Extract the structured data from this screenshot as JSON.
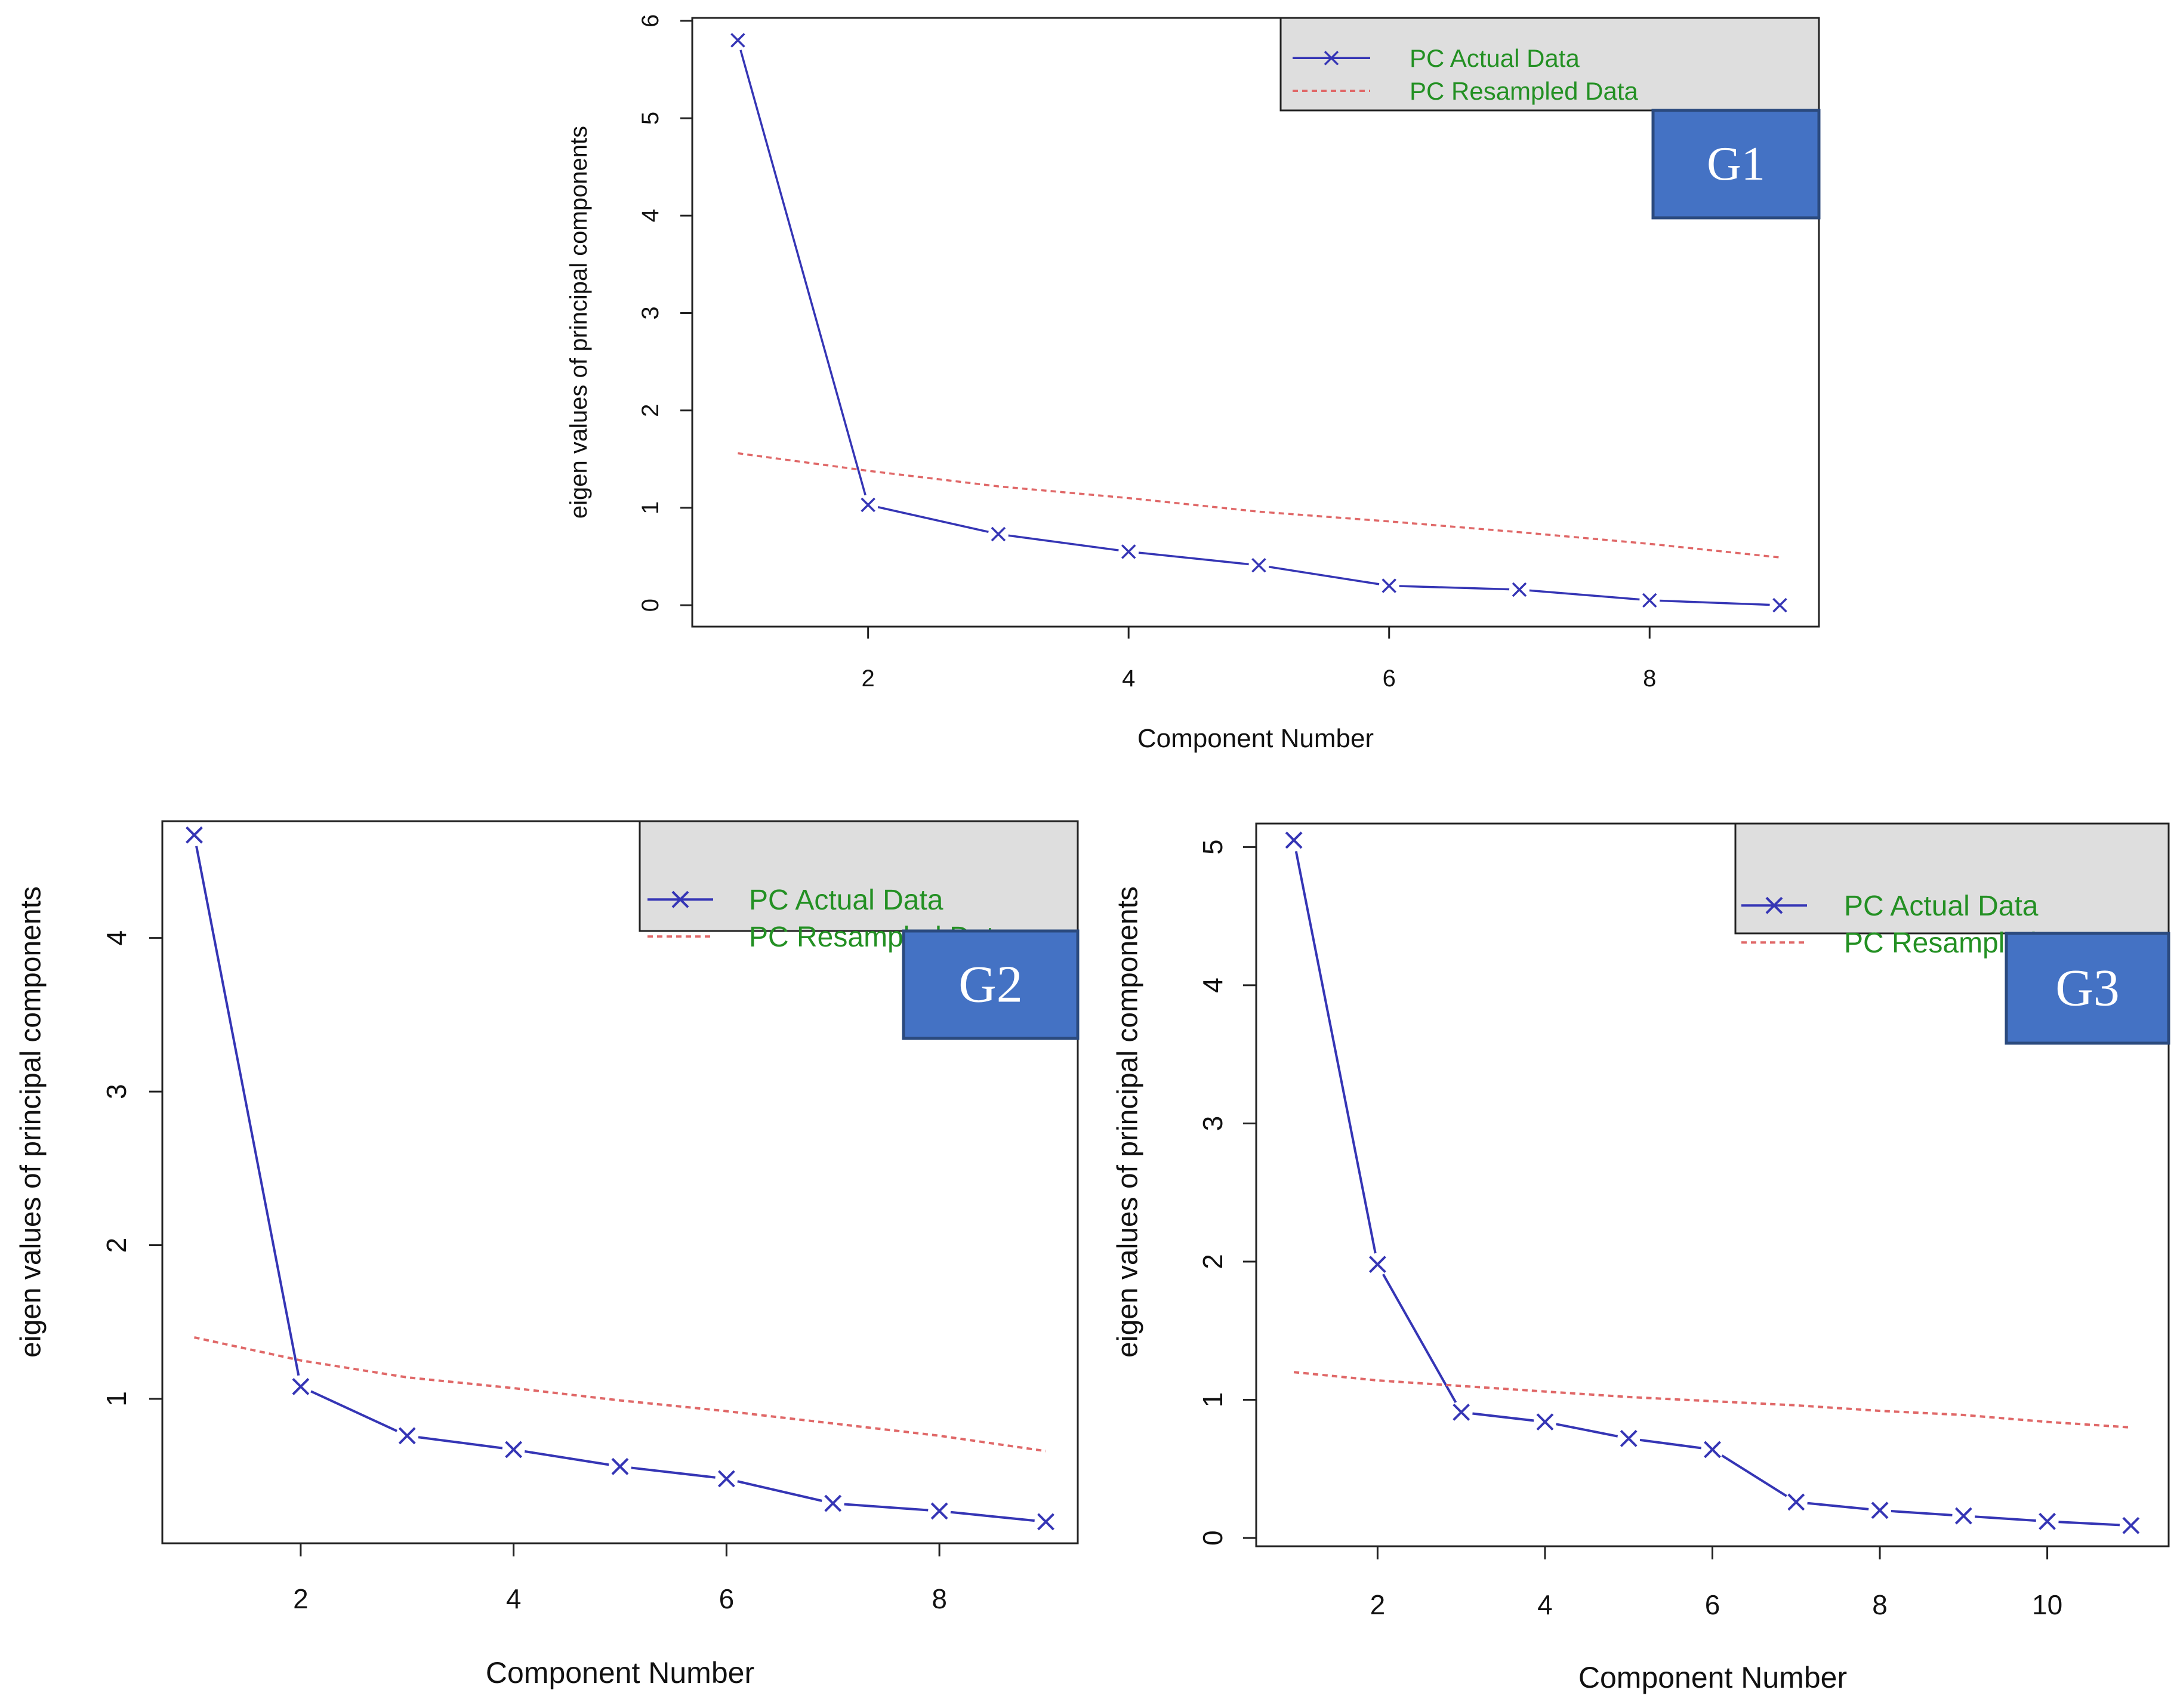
{
  "colors": {
    "actual": "#3535b5",
    "resampled": "#e06868",
    "legend_text": "#239023",
    "legend_bg": "#dedede",
    "badge_fill": "#4472c4",
    "badge_border": "#2b4a7e",
    "axis": "#222222"
  },
  "icons": {
    "actual_marker": "cross-x-marker",
    "resampled_marker": "dashed-line"
  },
  "chart_data": [
    {
      "id": "g1",
      "type": "line",
      "badge": "G1",
      "xlabel": "Component Number",
      "ylabel": "eigen values of principal components",
      "xlim": [
        0.65,
        9.3
      ],
      "ylim": [
        -0.22,
        6.03
      ],
      "xticks": [
        2,
        4,
        6,
        8
      ],
      "yticks": [
        0,
        1,
        2,
        3,
        4,
        5,
        6
      ],
      "legend": {
        "position": "top-right",
        "entries": [
          "PC  Actual Data",
          "PC  Resampled Data"
        ]
      },
      "series": [
        {
          "name": "PC  Actual Data",
          "style": "solid-x",
          "x": [
            1,
            2,
            3,
            4,
            5,
            6,
            7,
            8,
            9
          ],
          "values": [
            5.8,
            1.03,
            0.73,
            0.55,
            0.41,
            0.2,
            0.16,
            0.05,
            0.0
          ]
        },
        {
          "name": "PC  Resampled Data",
          "style": "dashed",
          "x": [
            1,
            2,
            3,
            4,
            5,
            6,
            7,
            8,
            9
          ],
          "values": [
            1.56,
            1.38,
            1.22,
            1.1,
            0.96,
            0.86,
            0.75,
            0.63,
            0.49
          ]
        }
      ]
    },
    {
      "id": "g2",
      "type": "line",
      "badge": "G2",
      "xlabel": "Component Number",
      "ylabel": "eigen values of principal components",
      "xlim": [
        0.7,
        9.3
      ],
      "ylim": [
        0.06,
        4.76
      ],
      "xticks": [
        2,
        4,
        6,
        8
      ],
      "yticks": [
        1,
        2,
        3,
        4
      ],
      "legend": {
        "position": "top-right",
        "entries": [
          "PC  Actual Data",
          "PC  Resampled Data"
        ]
      },
      "series": [
        {
          "name": "PC  Actual Data",
          "style": "solid-x",
          "x": [
            1,
            2,
            3,
            4,
            5,
            6,
            7,
            8,
            9
          ],
          "values": [
            4.67,
            1.08,
            0.76,
            0.67,
            0.56,
            0.48,
            0.32,
            0.27,
            0.2
          ]
        },
        {
          "name": "PC  Resampled Data",
          "style": "dashed",
          "x": [
            1,
            2,
            3,
            4,
            5,
            6,
            7,
            8,
            9
          ],
          "values": [
            1.4,
            1.25,
            1.14,
            1.07,
            0.99,
            0.92,
            0.84,
            0.76,
            0.66
          ]
        }
      ]
    },
    {
      "id": "g3",
      "type": "line",
      "badge": "G3",
      "xlabel": "Component Number",
      "ylabel": "eigen values of principal components",
      "xlim": [
        0.55,
        11.45
      ],
      "ylim": [
        -0.06,
        5.17
      ],
      "xticks": [
        2,
        4,
        6,
        8,
        10
      ],
      "yticks": [
        0,
        1,
        2,
        3,
        4,
        5
      ],
      "legend": {
        "position": "top-right",
        "entries": [
          "PC  Actual Data",
          "PC  Resampled Data"
        ]
      },
      "series": [
        {
          "name": "PC  Actual Data",
          "style": "solid-x",
          "x": [
            1,
            2,
            3,
            4,
            5,
            6,
            7,
            8,
            9,
            10,
            11
          ],
          "values": [
            5.05,
            1.98,
            0.91,
            0.84,
            0.72,
            0.64,
            0.26,
            0.2,
            0.16,
            0.12,
            0.09
          ]
        },
        {
          "name": "PC  Resampled Data",
          "style": "dashed",
          "x": [
            1,
            2,
            3,
            4,
            5,
            6,
            7,
            8,
            9,
            10,
            11
          ],
          "values": [
            1.2,
            1.14,
            1.1,
            1.06,
            1.02,
            0.99,
            0.96,
            0.92,
            0.89,
            0.84,
            0.8
          ]
        }
      ]
    }
  ]
}
